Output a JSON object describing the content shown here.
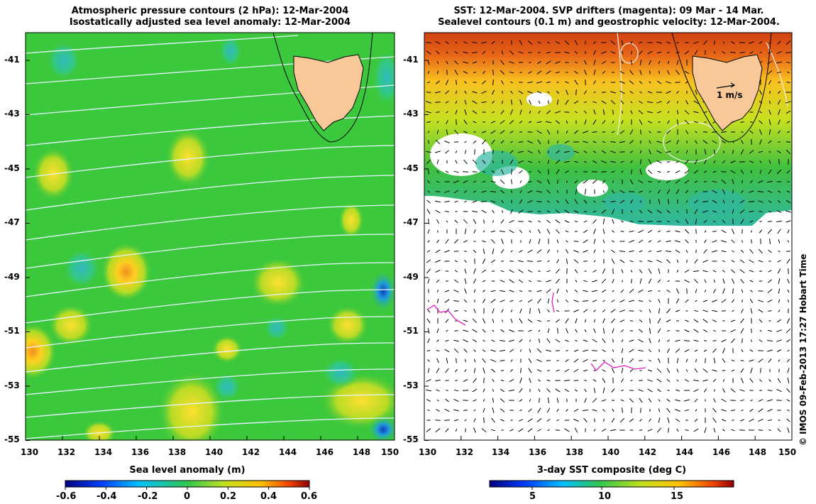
{
  "left_panel": {
    "title_line1": "Atmospheric pressure contours (2 hPa): 12-Mar-2004",
    "title_line2": "Isostatically adjusted sea level anomaly: 12-Mar-2004",
    "x_ticks": [
      "130",
      "132",
      "134",
      "136",
      "138",
      "140",
      "142",
      "144",
      "146",
      "148",
      "150"
    ],
    "y_ticks": [
      "-41",
      "-43",
      "-45",
      "-47",
      "-49",
      "-51",
      "-53",
      "-55"
    ],
    "colorbar_label": "Sea level anomaly (m)",
    "colorbar_ticks": [
      "-0.6",
      "-0.4",
      "-0.2",
      "0",
      "0.2",
      "0.4",
      "0.6"
    ],
    "colorbar_range": [
      -0.6,
      0.6
    ],
    "colors": {
      "background": "#3cc83c",
      "land": "#f8c898",
      "contour": "#e8f4ff"
    }
  },
  "right_panel": {
    "title_line1": "SST: 12-Mar-2004. SVP drifters (magenta): 09 Mar - 14 Mar.",
    "title_line2": "Sealevel contours (0.1 m) and geostrophic velocity: 12-Mar-2004.",
    "x_ticks": [
      "130",
      "132",
      "134",
      "136",
      "138",
      "140",
      "142",
      "144",
      "146",
      "148",
      "150"
    ],
    "y_ticks": [
      "-41",
      "-43",
      "-45",
      "-47",
      "-49",
      "-51",
      "-53",
      "-55"
    ],
    "vector_scale_label": "1 m/s",
    "colorbar_label": "3-day SST composite (deg C)",
    "colorbar_ticks": [
      "5",
      "10",
      "15"
    ],
    "colorbar_range": [
      2,
      19
    ],
    "colors": {
      "warm": "#d04010",
      "mid": "#f0c020",
      "cool": "#30b030",
      "drifter": "#e020c0",
      "land": "#f8c898"
    }
  },
  "map_extent": {
    "lon": [
      130,
      150
    ],
    "lat": [
      -55,
      -40
    ]
  },
  "credit": "© IMOS 09-Feb-2013 17:27 Hobart Time"
}
